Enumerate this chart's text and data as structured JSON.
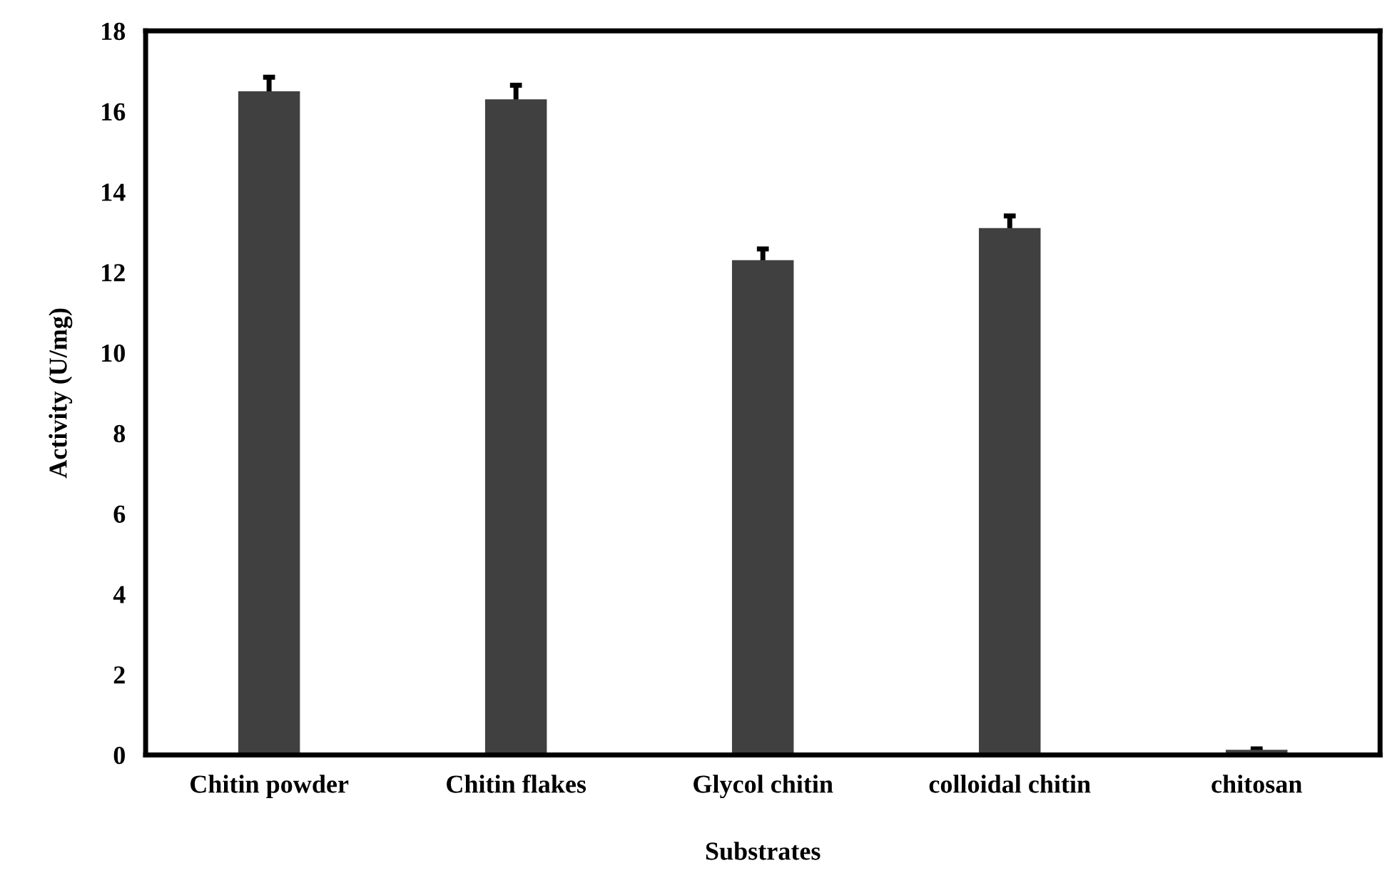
{
  "chart_data": {
    "type": "bar",
    "xlabel": "Substrates",
    "ylabel": "Activity (U/mg)",
    "categories": [
      "Chitin powder",
      "Chitin flakes",
      "Glycol chitin",
      "colloidal chitin",
      "chitosan"
    ],
    "values": [
      16.5,
      16.3,
      12.3,
      13.1,
      0.13
    ],
    "errors": [
      0.35,
      0.35,
      0.28,
      0.3,
      0.02
    ],
    "color": "#404040",
    "ylim": [
      0,
      18
    ],
    "yticks": [
      0,
      2,
      4,
      6,
      8,
      10,
      12,
      14,
      16,
      18
    ],
    "grid": false
  }
}
